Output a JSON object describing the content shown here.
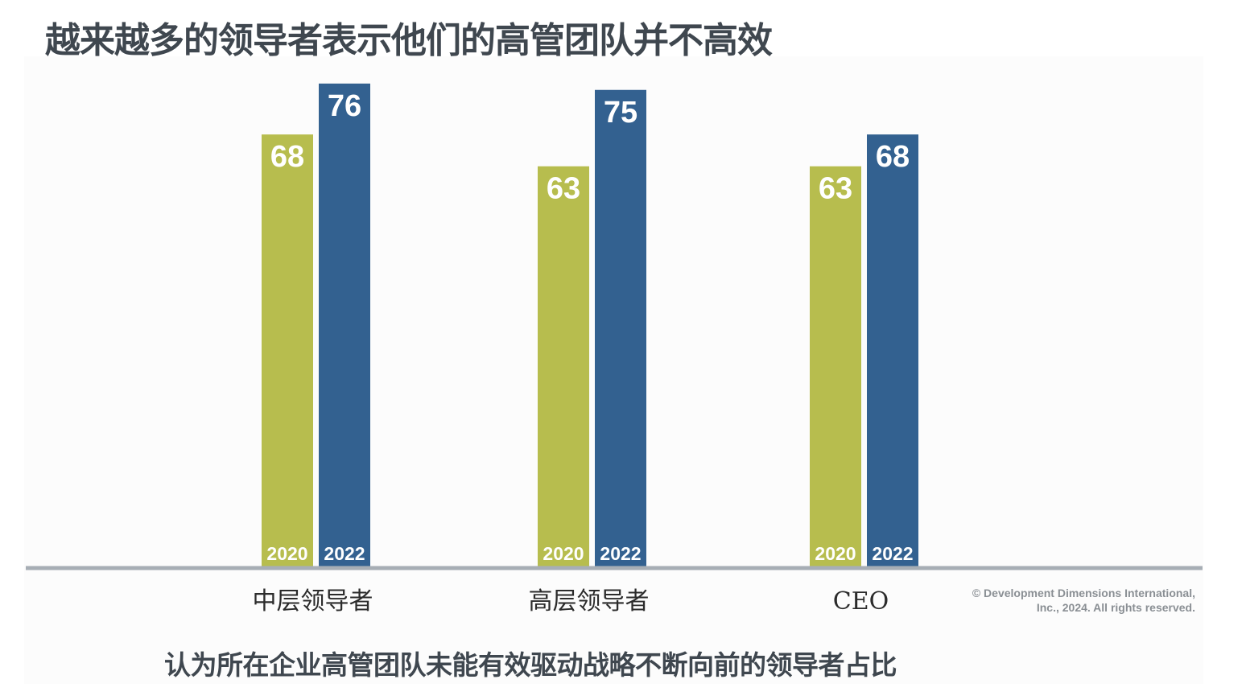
{
  "title": "越来越多的领导者表示他们的高管团队并不高效",
  "subtitle": "认为所在企业高管团队未能有效驱动战略不断向前的领导者占比",
  "copyright": {
    "line1": "© Development Dimensions International,",
    "line2": "Inc., 2024. All rights reserved."
  },
  "colors": {
    "series_2020": "#b7bd4e",
    "series_2022": "#336190",
    "title_text": "#3f474f",
    "baseline": "#a7aeb5"
  },
  "chart_data": {
    "type": "bar",
    "categories": [
      "中层领导者",
      "高层领导者",
      "CEO"
    ],
    "series": [
      {
        "name": "2020",
        "values": [
          68,
          63,
          63
        ]
      },
      {
        "name": "2022",
        "values": [
          76,
          75,
          68
        ]
      }
    ],
    "data_labels": true,
    "ylim": [
      0,
      100
    ],
    "grid": false,
    "legend": "none"
  }
}
